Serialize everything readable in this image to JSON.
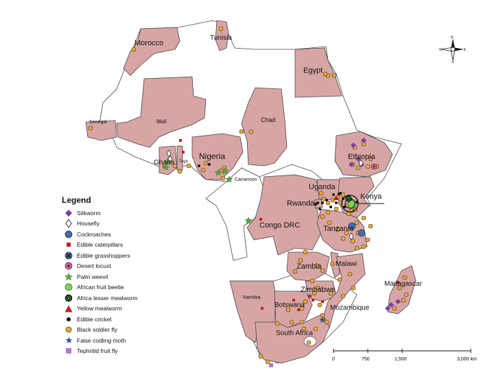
{
  "map": {
    "countries": [
      {
        "id": "morocco",
        "label": "Morocco"
      },
      {
        "id": "tunisia",
        "label": "Tunisia"
      },
      {
        "id": "egypt",
        "label": "Egypt"
      },
      {
        "id": "senegal",
        "label": "Senegal"
      },
      {
        "id": "mali",
        "label": "Mali"
      },
      {
        "id": "chad",
        "label": "Chad"
      },
      {
        "id": "nigeria",
        "label": "Nigeria"
      },
      {
        "id": "ghana",
        "label": "Ghana"
      },
      {
        "id": "togo",
        "label": "Togo"
      },
      {
        "id": "cameroon",
        "label": "Cameroon"
      },
      {
        "id": "ethiopia",
        "label": "Ethiopia"
      },
      {
        "id": "uganda",
        "label": "Uganda"
      },
      {
        "id": "kenya",
        "label": "Kenya"
      },
      {
        "id": "rwanda",
        "label": "Rwanda"
      },
      {
        "id": "congo-drc",
        "label": "Congo DRC"
      },
      {
        "id": "tanzania",
        "label": "Tanzania"
      },
      {
        "id": "zambia",
        "label": "Zambia"
      },
      {
        "id": "malawi",
        "label": "Malawi"
      },
      {
        "id": "zimbabwe",
        "label": "Zimbabwe"
      },
      {
        "id": "madagascar",
        "label": "Madagascar"
      },
      {
        "id": "namibia",
        "label": "Namibia"
      },
      {
        "id": "botswana",
        "label": "Botswana"
      },
      {
        "id": "mozambique",
        "label": "Mozambique"
      },
      {
        "id": "south-africa",
        "label": "South Africa"
      }
    ],
    "colors": {
      "highlight": "#d8a5a5",
      "land": "#ffffff",
      "border": "#444444",
      "silkworm": "#7b3f9e",
      "cockroaches": "#3f6db0",
      "caterpillars": "#c0201e",
      "desert_locust": "#e05aa0",
      "palm_weevil": "#5aa84a",
      "fruit_beetle": "#7dd35a",
      "lesser_mealworm": "#2a7a2a",
      "bsf": "#f0a830",
      "codling_moth": "#3a4aa0",
      "tephritid": "#b07ac8"
    }
  },
  "legend": {
    "title": "Legend",
    "items": [
      {
        "label": "Silkworm",
        "icon": "diamond-purple-icon"
      },
      {
        "label": "Housefly",
        "icon": "diamond-outline-icon"
      },
      {
        "label": "Cockroaches",
        "icon": "circle-blue-icon"
      },
      {
        "label": "Edible caterpillars",
        "icon": "square-red-icon"
      },
      {
        "label": "Edible grasshoppers",
        "icon": "circle-x-icon"
      },
      {
        "label": "Desert locust",
        "icon": "circle-pink-dot-icon"
      },
      {
        "label": "Palm weevil",
        "icon": "star-green-icon"
      },
      {
        "label": "African fruit beetle",
        "icon": "circle-lightgreen-icon"
      },
      {
        "label": "Africa lesser mealworm",
        "icon": "bullseye-green-icon"
      },
      {
        "label": "Yellow mealworm",
        "icon": "triangle-red-icon"
      },
      {
        "label": "Edible cricket",
        "icon": "dot-black-icon"
      },
      {
        "label": "Black soldier fly",
        "icon": "circle-orange-icon"
      },
      {
        "label": "False codling moth",
        "icon": "star-blue-icon"
      },
      {
        "label": "Tephritid fruit fly",
        "icon": "square-lilac-icon"
      }
    ]
  },
  "compass": {
    "n": "N",
    "s": "S",
    "e": "E",
    "w": "W"
  },
  "scale": {
    "ticks": [
      "0",
      "750",
      "1,500",
      "3,000 km"
    ]
  }
}
